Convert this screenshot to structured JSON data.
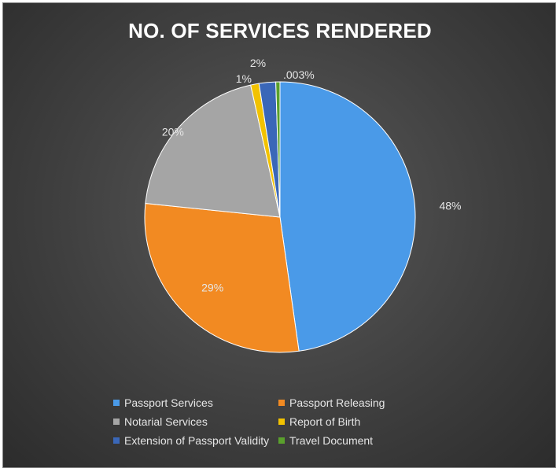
{
  "chart_data": {
    "type": "pie",
    "title": "NO. OF SERVICES RENDERED",
    "legend_position": "bottom",
    "slices": [
      {
        "name": "Passport Services",
        "value": 48,
        "label": "48%",
        "color": "#4a9ae8"
      },
      {
        "name": "Passport Releasing",
        "value": 29,
        "label": "29%",
        "color": "#f28a22"
      },
      {
        "name": "Notarial Services",
        "value": 20,
        "label": "20%",
        "color": "#a5a5a5"
      },
      {
        "name": "Report of Birth",
        "value": 1,
        "label": "1%",
        "color": "#f2c200"
      },
      {
        "name": "Extension of Passport Validity",
        "value": 2,
        "label": "2%",
        "color": "#3a67b8"
      },
      {
        "name": "Travel Document",
        "value": 0.003,
        "label": ".003%",
        "color": "#5aa02c"
      }
    ]
  }
}
